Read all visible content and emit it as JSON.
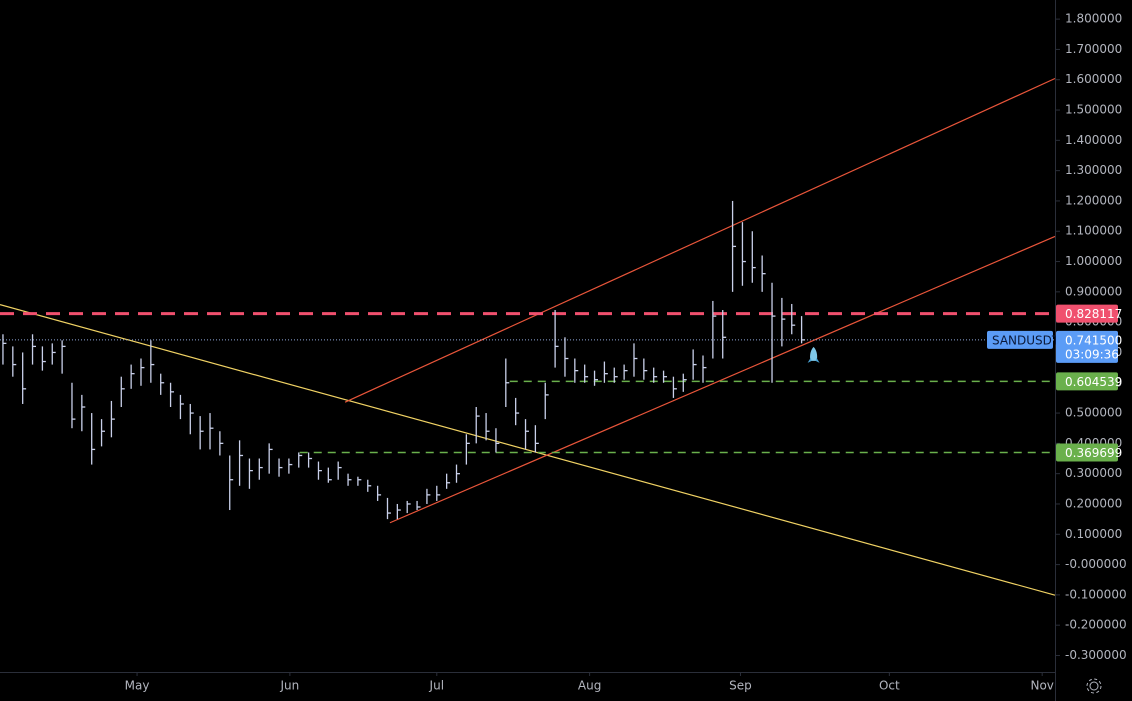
{
  "chart_data": {
    "type": "ohlc",
    "series_name": "SANDUSDT",
    "color": "#c9d0ea",
    "categories": [
      null,
      null,
      null,
      null,
      null,
      null,
      null,
      null,
      null,
      null,
      null,
      null,
      null,
      null,
      null,
      null,
      null,
      null,
      null,
      null,
      null,
      null,
      null,
      null,
      null,
      null,
      null,
      null,
      null,
      null,
      null,
      null,
      null,
      null,
      null,
      null,
      null,
      null,
      null,
      null,
      null,
      null,
      null,
      null,
      null,
      null,
      null,
      null,
      null,
      null,
      null,
      null,
      null,
      null,
      null,
      null,
      null,
      null,
      null,
      null,
      null,
      null,
      null,
      null,
      null,
      null,
      null,
      null,
      null,
      null,
      null,
      null,
      null,
      null,
      null,
      null,
      null,
      null,
      null,
      null,
      null,
      null
    ],
    "high": [
      0.76,
      0.72,
      0.7,
      0.76,
      0.72,
      0.73,
      0.74,
      0.6,
      0.56,
      0.5,
      0.48,
      0.54,
      0.62,
      0.66,
      0.68,
      0.74,
      0.63,
      0.6,
      0.56,
      0.53,
      0.49,
      0.5,
      0.44,
      0.36,
      0.41,
      0.35,
      0.35,
      0.4,
      0.35,
      0.35,
      0.37,
      0.37,
      0.34,
      0.32,
      0.34,
      0.3,
      0.29,
      0.28,
      0.26,
      0.22,
      0.2,
      0.21,
      0.21,
      0.25,
      0.26,
      0.3,
      0.33,
      0.43,
      0.52,
      0.5,
      0.45,
      0.68,
      0.55,
      0.48,
      0.46,
      0.6,
      0.84,
      0.75,
      0.68,
      0.66,
      0.64,
      0.67,
      0.65,
      0.66,
      0.73,
      0.68,
      0.65,
      0.64,
      0.62,
      0.63,
      0.71,
      0.69,
      0.87,
      0.84,
      1.2,
      1.13,
      1.1,
      1.02,
      0.93,
      0.88,
      0.86,
      0.82
    ],
    "low": [
      0.66,
      0.62,
      0.53,
      0.66,
      0.64,
      0.66,
      0.63,
      0.45,
      0.44,
      0.33,
      0.39,
      0.42,
      0.52,
      0.58,
      0.59,
      0.6,
      0.56,
      0.52,
      0.48,
      0.43,
      0.38,
      0.38,
      0.36,
      0.18,
      0.26,
      0.25,
      0.28,
      0.3,
      0.29,
      0.3,
      0.32,
      0.32,
      0.28,
      0.27,
      0.28,
      0.26,
      0.26,
      0.24,
      0.21,
      0.15,
      0.15,
      0.17,
      0.18,
      0.2,
      0.21,
      0.25,
      0.27,
      0.33,
      0.4,
      0.41,
      0.37,
      0.52,
      0.46,
      0.38,
      0.37,
      0.48,
      0.65,
      0.62,
      0.6,
      0.6,
      0.59,
      0.6,
      0.6,
      0.61,
      0.62,
      0.61,
      0.6,
      0.6,
      0.55,
      0.57,
      0.61,
      0.6,
      0.68,
      0.68,
      0.9,
      0.92,
      0.93,
      0.9,
      0.6,
      0.72,
      0.76,
      0.73
    ],
    "close": [
      0.73,
      0.66,
      0.58,
      0.72,
      0.67,
      0.7,
      0.72,
      0.48,
      0.52,
      0.38,
      0.44,
      0.48,
      0.58,
      0.63,
      0.65,
      0.66,
      0.6,
      0.57,
      0.53,
      0.5,
      0.44,
      0.45,
      0.4,
      0.28,
      0.36,
      0.31,
      0.32,
      0.38,
      0.32,
      0.33,
      0.36,
      0.35,
      0.31,
      0.28,
      0.32,
      0.28,
      0.28,
      0.26,
      0.23,
      0.17,
      0.18,
      0.2,
      0.19,
      0.23,
      0.23,
      0.27,
      0.3,
      0.4,
      0.49,
      0.44,
      0.4,
      0.6,
      0.5,
      0.44,
      0.4,
      0.56,
      0.72,
      0.68,
      0.64,
      0.62,
      0.61,
      0.63,
      0.62,
      0.64,
      0.68,
      0.64,
      0.62,
      0.62,
      0.58,
      0.61,
      0.66,
      0.65,
      0.82,
      0.75,
      1.05,
      1.0,
      0.98,
      0.96,
      0.82,
      0.81,
      0.79,
      0.7415
    ],
    "xlim": [
      -0.3,
      106.7
    ],
    "ylim": [
      -0.3545,
      1.8631
    ],
    "xticks": [
      {
        "value": 13.6,
        "label": "May"
      },
      {
        "value": 29.1,
        "label": "Jun"
      },
      {
        "value": 44.0,
        "label": "Jul"
      },
      {
        "value": 59.5,
        "label": "Aug"
      },
      {
        "value": 74.8,
        "label": "Sep"
      },
      {
        "value": 89.9,
        "label": "Oct"
      },
      {
        "value": 105.4,
        "label": "Nov"
      }
    ],
    "yticks": [
      {
        "value": 1.8,
        "label": "1.800000"
      },
      {
        "value": 1.7,
        "label": "1.700000"
      },
      {
        "value": 1.6,
        "label": "1.600000"
      },
      {
        "value": 1.5,
        "label": "1.500000"
      },
      {
        "value": 1.4,
        "label": "1.400000"
      },
      {
        "value": 1.3,
        "label": "1.300000"
      },
      {
        "value": 1.2,
        "label": "1.200000"
      },
      {
        "value": 1.1,
        "label": "1.100000"
      },
      {
        "value": 1.0,
        "label": "1.000000"
      },
      {
        "value": 0.9,
        "label": "0.900000"
      },
      {
        "value": 0.8,
        "label": "0.800000"
      },
      {
        "value": 0.7,
        "label": "0.700000"
      },
      {
        "value": 0.6,
        "label": "0.600000"
      },
      {
        "value": 0.5,
        "label": "0.500000"
      },
      {
        "value": 0.4,
        "label": "0.400000"
      },
      {
        "value": 0.3,
        "label": "0.300000"
      },
      {
        "value": 0.2,
        "label": "0.200000"
      },
      {
        "value": 0.1,
        "label": "0.100000"
      },
      {
        "value": 0,
        "label": "-0.000000"
      },
      {
        "value": -0.1,
        "label": "-0.100000"
      },
      {
        "value": -0.2,
        "label": "-0.200000"
      },
      {
        "value": -0.3,
        "label": "-0.300000"
      }
    ],
    "trendlines": [
      {
        "color": "#f0d264",
        "x": [
          -0.3,
          106.7
        ],
        "values": [
          0.858,
          -0.101
        ]
      },
      {
        "color": "#e8553a",
        "x": [
          39.25,
          106.7
        ],
        "values": [
          0.138,
          1.083
        ]
      },
      {
        "color": "#e8553a",
        "x": [
          34.7,
          106.7
        ],
        "values": [
          0.536,
          1.604
        ]
      }
    ],
    "levels": [
      {
        "value": 0.828117,
        "label": "0.828117",
        "color": "#f0506e",
        "start": -0.3
      },
      {
        "value": 0.604539,
        "label": "0.604539",
        "color": "#6ab04c",
        "start": 51.4
      },
      {
        "value": 0.369699,
        "label": "0.369699",
        "color": "#6ab04c",
        "start": 30.1
      }
    ],
    "last_price": {
      "value": 0.7415,
      "label": "0.741500",
      "countdown": "03:09:36"
    }
  }
}
